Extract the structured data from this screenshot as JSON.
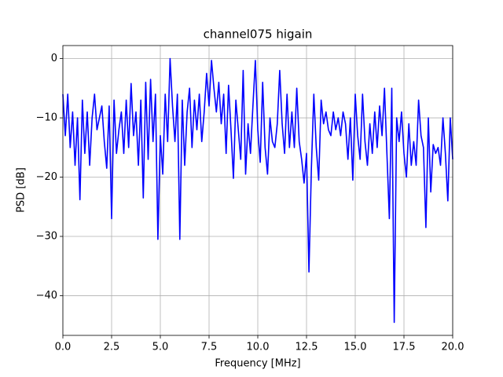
{
  "chart_data": {
    "type": "line",
    "title": "channel075 higain",
    "xlabel": "Frequency [MHz]",
    "ylabel": "PSD [dB]",
    "x": [
      0,
      0.125,
      0.25,
      0.375,
      0.5,
      0.625,
      0.75,
      0.875,
      1,
      1.125,
      1.25,
      1.375,
      1.5,
      1.625,
      1.75,
      1.875,
      2,
      2.125,
      2.25,
      2.375,
      2.5,
      2.625,
      2.75,
      2.875,
      3,
      3.125,
      3.25,
      3.375,
      3.5,
      3.625,
      3.75,
      3.875,
      4,
      4.125,
      4.25,
      4.375,
      4.5,
      4.625,
      4.75,
      4.875,
      5,
      5.125,
      5.25,
      5.375,
      5.5,
      5.625,
      5.75,
      5.875,
      6,
      6.125,
      6.25,
      6.375,
      6.5,
      6.625,
      6.75,
      6.875,
      7,
      7.125,
      7.25,
      7.375,
      7.5,
      7.625,
      7.75,
      7.875,
      8,
      8.125,
      8.25,
      8.375,
      8.5,
      8.625,
      8.75,
      8.875,
      9,
      9.125,
      9.25,
      9.375,
      9.5,
      9.625,
      9.75,
      9.875,
      10,
      10.125,
      10.25,
      10.375,
      10.5,
      10.625,
      10.75,
      10.875,
      11,
      11.125,
      11.25,
      11.375,
      11.5,
      11.625,
      11.75,
      11.875,
      12,
      12.125,
      12.25,
      12.375,
      12.5,
      12.625,
      12.75,
      12.875,
      13,
      13.125,
      13.25,
      13.375,
      13.5,
      13.625,
      13.75,
      13.875,
      14,
      14.125,
      14.25,
      14.375,
      14.5,
      14.625,
      14.75,
      14.875,
      15,
      15.125,
      15.25,
      15.375,
      15.5,
      15.625,
      15.75,
      15.875,
      16,
      16.125,
      16.25,
      16.375,
      16.5,
      16.625,
      16.75,
      16.875,
      17,
      17.125,
      17.25,
      17.375,
      17.5,
      17.625,
      17.75,
      17.875,
      18,
      18.125,
      18.25,
      18.375,
      18.5,
      18.625,
      18.75,
      18.875,
      19,
      19.125,
      19.25,
      19.375,
      19.5,
      19.625,
      19.75,
      19.875,
      20
    ],
    "series": [
      {
        "color": "#0000ff",
        "values": [
          -6,
          -13,
          -6,
          -15,
          -9,
          -18,
          -10,
          -23.8,
          -7,
          -16,
          -9,
          -18,
          -10,
          -6,
          -12,
          -10,
          -8,
          -14,
          -18.5,
          -8,
          -27,
          -7,
          -16,
          -12,
          -9,
          -16,
          -7,
          -15,
          -4.2,
          -13,
          -9,
          -18,
          -7,
          -23.5,
          -4,
          -17,
          -3.5,
          -14,
          -6,
          -30.5,
          -13,
          -19.5,
          -6,
          -14,
          0,
          -8,
          -14,
          -6,
          -30.5,
          -7,
          -18,
          -9,
          -5,
          -15,
          -7,
          -12,
          -6,
          -14,
          -9,
          -2.5,
          -8,
          -0.3,
          -5,
          -9,
          -4,
          -11,
          -6,
          -16,
          -4.5,
          -12,
          -20.2,
          -7,
          -12,
          -17,
          -2,
          -19.5,
          -11,
          -16,
          -8,
          -0.3,
          -12,
          -17.5,
          -4,
          -15,
          -19.5,
          -10,
          -14,
          -15,
          -11,
          -2,
          -11,
          -16,
          -6,
          -15,
          -9,
          -15,
          -5,
          -14,
          -17,
          -21,
          -16,
          -36,
          -18.5,
          -6,
          -15,
          -20.5,
          -7,
          -11,
          -9,
          -12,
          -13,
          -9,
          -12,
          -10,
          -13,
          -9,
          -11,
          -17,
          -10,
          -20.5,
          -6,
          -13,
          -17,
          -6,
          -14,
          -18,
          -11,
          -16,
          -9,
          -15,
          -8,
          -13,
          -5,
          -16,
          -27,
          -5,
          -44.5,
          -10,
          -14,
          -9,
          -16,
          -20,
          -11,
          -18,
          -14,
          -18,
          -7,
          -13,
          -15,
          -28.5,
          -10,
          -22.5,
          -14.5,
          -16,
          -15,
          -18,
          -10,
          -16,
          -24,
          -10,
          -17
        ]
      }
    ],
    "xlim": [
      0,
      20
    ],
    "xticks": [
      {
        "value": 0,
        "label": "0.0"
      },
      2.5,
      {
        "value": 5,
        "label": "5.0"
      },
      7.5,
      {
        "value": 10,
        "label": "10.0"
      },
      12.5,
      {
        "value": 15,
        "label": "15.0"
      },
      17.5,
      {
        "value": 20,
        "label": "20.0"
      }
    ],
    "ylim": [
      -46.7,
      2.2
    ],
    "yticks": [
      {
        "value": -40,
        "label": "−40"
      },
      {
        "value": -30,
        "label": "−30"
      },
      {
        "value": -20,
        "label": "−20"
      },
      {
        "value": -10,
        "label": "−10"
      },
      0
    ],
    "grid": true
  }
}
